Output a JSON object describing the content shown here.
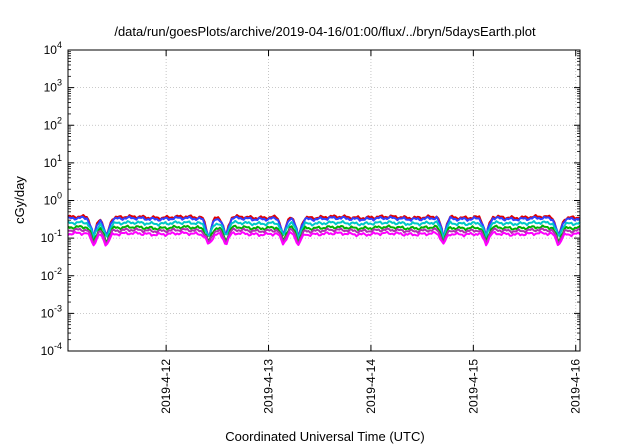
{
  "chart_data": {
    "type": "line",
    "title": "/data/run/goesPlots/archive/2019-04-16/01:00/flux/../bryn/5daysEarth.plot",
    "xlabel": "Coordinated Universal Time (UTC)",
    "ylabel": "cGy/day",
    "yscale": "log",
    "ylim": [
      0.0001,
      10000
    ],
    "y_ticks": [
      {
        "value": 0.0001,
        "base": "10",
        "exp": "-4"
      },
      {
        "value": 0.001,
        "base": "10",
        "exp": "-3"
      },
      {
        "value": 0.01,
        "base": "10",
        "exp": "-2"
      },
      {
        "value": 0.1,
        "base": "10",
        "exp": "-1"
      },
      {
        "value": 1,
        "base": "10",
        "exp": "0"
      },
      {
        "value": 10,
        "base": "10",
        "exp": "1"
      },
      {
        "value": 100,
        "base": "10",
        "exp": "2"
      },
      {
        "value": 1000,
        "base": "10",
        "exp": "3"
      },
      {
        "value": 10000,
        "base": "10",
        "exp": "4"
      }
    ],
    "xlim": [
      "2019-04-11T01:00",
      "2019-04-16T01:00"
    ],
    "x_ticks": [
      {
        "value": "2019-04-12T00:00",
        "label": "2019-4-12"
      },
      {
        "value": "2019-04-13T00:00",
        "label": "2019-4-13"
      },
      {
        "value": "2019-04-14T00:00",
        "label": "2019-4-14"
      },
      {
        "value": "2019-04-15T00:00",
        "label": "2019-4-15"
      },
      {
        "value": "2019-04-16T00:00",
        "label": "2019-4-16"
      }
    ],
    "grid": true,
    "series": [
      {
        "color": "#e00000",
        "base": 0.36,
        "dip": 0.75
      },
      {
        "color": "#3040ff",
        "base": 0.33,
        "dip": 0.7
      },
      {
        "color": "#00c8c8",
        "base": 0.25,
        "dip": 0.6
      },
      {
        "color": "#00b000",
        "base": 0.19,
        "dip": 0.6
      },
      {
        "color": "#b030b0",
        "base": 0.16,
        "dip": 0.55
      },
      {
        "color": "#ff00ff",
        "base": 0.13,
        "dip": 0.5
      }
    ],
    "dips_at": [
      "2019-04-11T07:00",
      "2019-04-11T10:00",
      "2019-04-12T10:00",
      "2019-04-12T14:00",
      "2019-04-13T03:30",
      "2019-04-13T07:00",
      "2019-04-14T17:00",
      "2019-04-15T03:00",
      "2019-04-15T20:00"
    ]
  }
}
